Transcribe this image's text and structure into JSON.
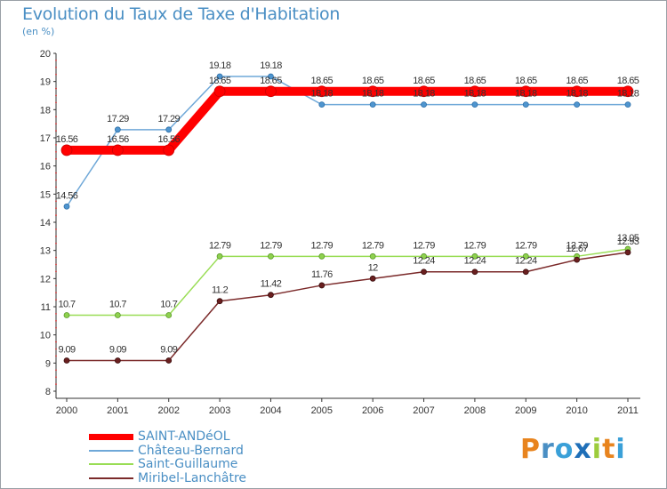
{
  "chart_data": {
    "type": "line",
    "title": "Evolution du Taux de Taxe d'Habitation",
    "subtitle": "(en %)",
    "x": [
      "2000",
      "2001",
      "2002",
      "2003",
      "2004",
      "2005",
      "2006",
      "2007",
      "2008",
      "2009",
      "2010",
      "2011"
    ],
    "ylim": [
      8,
      20
    ],
    "yticks": [
      "8",
      "9",
      "10",
      "11",
      "12",
      "13",
      "14",
      "15",
      "16",
      "17",
      "18",
      "19",
      "20"
    ],
    "series": [
      {
        "name": "SAINT-ANDéOL",
        "color": "#ff0000",
        "values": [
          16.56,
          16.56,
          16.56,
          18.65,
          18.65,
          18.65,
          18.65,
          18.65,
          18.65,
          18.65,
          18.65,
          18.65
        ],
        "labels": [
          "16.56",
          "16.56",
          "16.56",
          "18.65",
          "18.65",
          "18.65",
          "18.65",
          "18.65",
          "18.65",
          "18.65",
          "18.65",
          "18.65"
        ]
      },
      {
        "name": "Château-Bernard",
        "color": "#6fa8d8",
        "values": [
          14.56,
          17.29,
          17.29,
          19.18,
          19.18,
          18.18,
          18.18,
          18.18,
          18.18,
          18.18,
          18.18,
          18.18
        ],
        "labels": [
          "14.56",
          "17.29",
          "17.29",
          "19.18",
          "19.18",
          "18.18",
          "18.18",
          "18.18",
          "18.18",
          "18.18",
          "18.18",
          "18.18"
        ]
      },
      {
        "name": "Saint-Guillaume",
        "color": "#99dd55",
        "values": [
          10.7,
          10.7,
          10.7,
          12.79,
          12.79,
          12.79,
          12.79,
          12.79,
          12.79,
          12.79,
          12.79,
          13.05
        ],
        "labels": [
          "10.7",
          "10.7",
          "10.7",
          "12.79",
          "12.79",
          "12.79",
          "12.79",
          "12.79",
          "12.79",
          "12.79",
          "12.79",
          "13.05"
        ]
      },
      {
        "name": "Miribel-Lanchâtre",
        "color": "#7b2a2a",
        "values": [
          9.09,
          9.09,
          9.09,
          11.2,
          11.42,
          11.76,
          12,
          12.24,
          12.24,
          12.24,
          12.67,
          12.93
        ],
        "labels": [
          "9.09",
          "9.09",
          "9.09",
          "11.2",
          "11.42",
          "11.76",
          "12",
          "12.24",
          "12.24",
          "12.24",
          "12.67",
          "12.93"
        ]
      }
    ],
    "grid": false,
    "legend": "bottom-left"
  },
  "logo": {
    "letters": [
      "P",
      "r",
      "o",
      "x",
      "i",
      "t",
      "i"
    ],
    "colors": [
      "#e8841e",
      "#4a8fc4",
      "#3aa0d8",
      "#1f6fb8",
      "#9ccc3c",
      "#e8841e",
      "#3aa0d8"
    ]
  }
}
